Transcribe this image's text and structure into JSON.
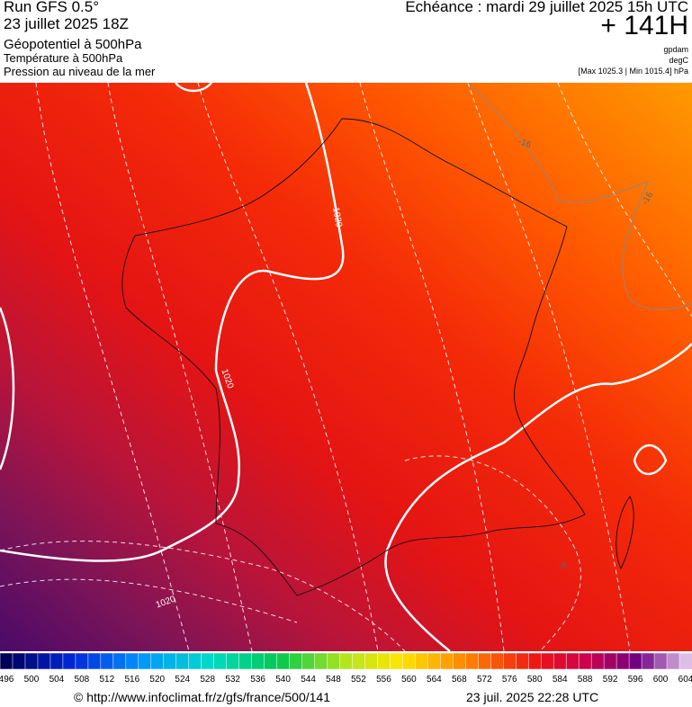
{
  "header": {
    "run": "Run GFS 0.5°",
    "run_date": "23 juillet 2025 18Z",
    "field_1": "Géopotentiel à 500hPa",
    "field_2": "Température à 500hPa",
    "field_3": "Pression au niveau de la mer",
    "valid": "Echéance : mardi 29 juillet 2025 15h UTC",
    "lead": "+ 141H",
    "unit_1": "gpdam",
    "unit_2": "degC",
    "range": "[Max 1025.3 | Min 1015.4] hPa"
  },
  "map": {
    "contour_labels": [
      "1020",
      "1020",
      "1020",
      "-16",
      "-16",
      "-8"
    ]
  },
  "colorbar": {
    "labels": [
      496,
      500,
      504,
      508,
      512,
      516,
      520,
      524,
      528,
      532,
      536,
      540,
      544,
      548,
      552,
      556,
      560,
      564,
      568,
      572,
      576,
      580,
      584,
      588,
      592,
      596,
      600,
      604
    ]
  },
  "footer": {
    "source": "© http://www.infoclimat.fr/z/gfs/france/500/141",
    "generated": "23 juil. 2025 22:28 UTC"
  }
}
